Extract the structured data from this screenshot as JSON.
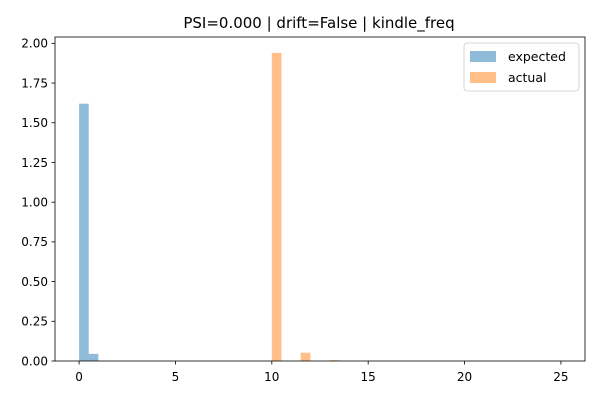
{
  "chart_data": {
    "type": "bar",
    "title": "PSI=0.000 | drift=False | kindle_freq",
    "xlabel": "",
    "ylabel": "",
    "xlim": [
      -1.25,
      26.25
    ],
    "ylim": [
      0,
      2.04
    ],
    "x_ticks": [
      0,
      5,
      10,
      15,
      20,
      25
    ],
    "x_tick_labels": [
      "0",
      "5",
      "10",
      "15",
      "20",
      "25"
    ],
    "y_ticks": [
      0,
      0.25,
      0.5,
      0.75,
      1.0,
      1.25,
      1.5,
      1.75,
      2.0
    ],
    "y_tick_labels": [
      "0.00",
      "0.25",
      "0.50",
      "0.75",
      "1.00",
      "1.25",
      "1.50",
      "1.75",
      "2.00"
    ],
    "grid": false,
    "legend_position": "top-right",
    "bin_width": 0.5,
    "series": [
      {
        "name": "expected",
        "color": "#1f77b4",
        "opacity": 0.5,
        "bins": [
          {
            "x0": 0.0,
            "value": 1.62
          },
          {
            "x0": 0.5,
            "value": 0.045
          }
        ]
      },
      {
        "name": "actual",
        "color": "#ff7f0e",
        "opacity": 0.5,
        "bins": [
          {
            "x0": 10.0,
            "value": 1.94
          },
          {
            "x0": 11.5,
            "value": 0.052
          },
          {
            "x0": 13.0,
            "value": 0.005
          }
        ]
      }
    ]
  }
}
